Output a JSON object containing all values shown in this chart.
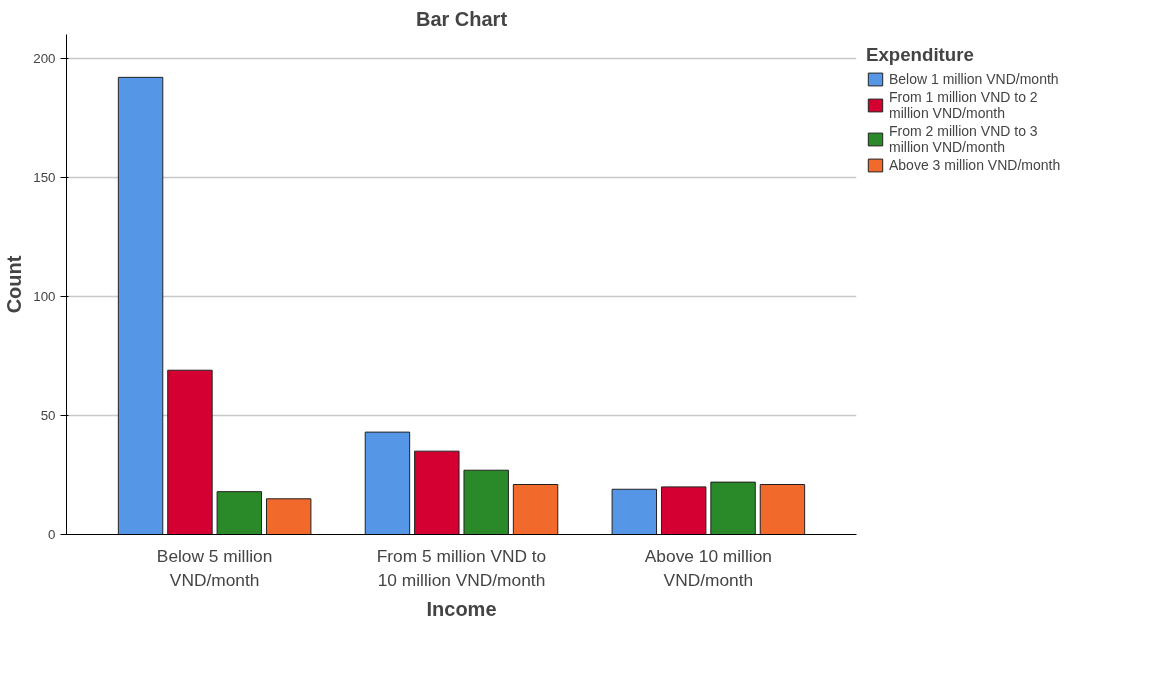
{
  "chart_data": {
    "type": "bar",
    "title": "Bar Chart",
    "xlabel": "Income",
    "ylabel": "Count",
    "legend_title": "Expenditure",
    "categories": [
      "Below 5 million VND/month",
      "From 5 million VND to 10 million VND/month",
      "Above 10 million VND/month"
    ],
    "series": [
      {
        "name": "Below 1 million VND/month",
        "color": "#5597e6",
        "values": [
          192,
          43,
          19
        ]
      },
      {
        "name": "From 1 million VND to 2 million VND/month",
        "color": "#d50032",
        "values": [
          69,
          35,
          20
        ]
      },
      {
        "name": "From 2 million VND to 3 million VND/month",
        "color": "#2a8a2a",
        "values": [
          18,
          27,
          22
        ]
      },
      {
        "name": "Above 3 million VND/month",
        "color": "#f26a2b",
        "values": [
          15,
          21,
          21
        ]
      }
    ],
    "ylim": [
      0,
      210
    ],
    "yticks": [
      0,
      50,
      100,
      150,
      200
    ],
    "grid": "y",
    "legend": "top right"
  }
}
